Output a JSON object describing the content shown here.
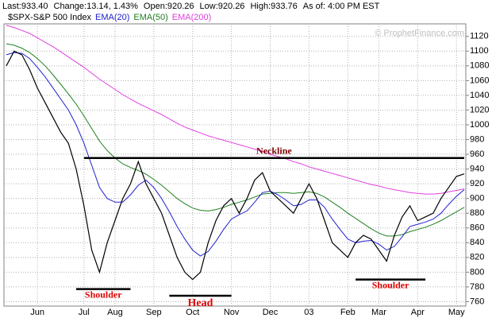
{
  "chart_data": {
    "type": "line",
    "quote": [
      "Last:933.40",
      "Change:13.14, 1.43%",
      "Open:920.26",
      "Low:920.26",
      "High:933.76",
      "As of: 4:00 PM EST"
    ],
    "watermark": "© ProphetFinance.com",
    "categories": [
      null,
      null,
      null,
      null,
      "Jun",
      null,
      null,
      null,
      null,
      null,
      "Jul",
      null,
      null,
      null,
      "Aug",
      null,
      null,
      null,
      null,
      "Sep",
      null,
      null,
      null,
      null,
      "Oct",
      null,
      null,
      null,
      null,
      "Nov",
      null,
      null,
      null,
      null,
      "Dec",
      null,
      null,
      null,
      null,
      "03",
      null,
      null,
      null,
      null,
      "Feb",
      null,
      null,
      null,
      "Mar",
      null,
      null,
      null,
      null,
      "Apr",
      null,
      null,
      null,
      null,
      "May",
      null
    ],
    "series": [
      {
        "name": "$SPX-S&P 500 Index",
        "color": "#000000",
        "width": 1.2,
        "values": [
          1080,
          1100,
          1095,
          1075,
          1050,
          1030,
          1010,
          990,
          975,
          940,
          890,
          830,
          800,
          840,
          870,
          900,
          920,
          950,
          920,
          900,
          880,
          850,
          820,
          800,
          790,
          800,
          840,
          870,
          890,
          900,
          880,
          900,
          925,
          935,
          910,
          900,
          890,
          880,
          900,
          920,
          900,
          870,
          840,
          830,
          820,
          840,
          850,
          845,
          830,
          815,
          850,
          875,
          890,
          870,
          875,
          880,
          900,
          915,
          930,
          933.4
        ]
      },
      {
        "name": "EMA(20)",
        "color": "#2020d0",
        "width": 1,
        "values": [
          1095,
          1098,
          1097,
          1090,
          1078,
          1065,
          1050,
          1035,
          1020,
          1000,
          975,
          945,
          915,
          900,
          895,
          895,
          905,
          918,
          925,
          915,
          900,
          882,
          862,
          845,
          830,
          822,
          828,
          842,
          858,
          872,
          878,
          883,
          895,
          908,
          910,
          905,
          898,
          890,
          892,
          898,
          898,
          888,
          872,
          858,
          845,
          840,
          842,
          843,
          838,
          830,
          835,
          848,
          862,
          865,
          868,
          872,
          880,
          892,
          903,
          912
        ]
      },
      {
        "name": "EMA(50)",
        "color": "#208020",
        "width": 1,
        "values": [
          1110,
          1108,
          1104,
          1098,
          1090,
          1080,
          1068,
          1055,
          1042,
          1028,
          1012,
          995,
          978,
          965,
          955,
          947,
          942,
          938,
          933,
          926,
          918,
          909,
          900,
          893,
          887,
          884,
          883,
          885,
          888,
          892,
          895,
          898,
          902,
          906,
          907,
          908,
          908,
          907,
          908,
          909,
          907,
          902,
          895,
          888,
          880,
          873,
          866,
          859,
          853,
          849,
          849,
          851,
          855,
          858,
          861,
          865,
          870,
          876,
          882,
          888
        ]
      },
      {
        "name": "EMA(200)",
        "color": "#e040e0",
        "width": 1,
        "values": [
          1135,
          1132,
          1128,
          1124,
          1118,
          1112,
          1106,
          1099,
          1092,
          1085,
          1078,
          1070,
          1062,
          1055,
          1048,
          1041,
          1035,
          1029,
          1024,
          1019,
          1014,
          1008,
          1002,
          997,
          993,
          989,
          985,
          982,
          979,
          976,
          973,
          970,
          967,
          964,
          960,
          957,
          954,
          950,
          947,
          943,
          940,
          937,
          934,
          931,
          928,
          925,
          922,
          919,
          917,
          914,
          912,
          910,
          908,
          907,
          906,
          906,
          907,
          909,
          911,
          913
        ]
      }
    ],
    "ylim": [
      754,
      1137
    ],
    "yticks": [
      760,
      780,
      800,
      820,
      840,
      860,
      880,
      900,
      920,
      940,
      960,
      980,
      1000,
      1020,
      1040,
      1060,
      1080,
      1100,
      1120
    ],
    "grid": true,
    "annotations": [
      {
        "text": "Neckline",
        "level": 955,
        "x_range": [
          10,
          59
        ],
        "color": "#800000"
      },
      {
        "text": "Shoulder",
        "level": 777,
        "x_range": [
          9,
          16
        ],
        "color": "#e00000"
      },
      {
        "text": "Head",
        "level": 768,
        "x_range": [
          21,
          29
        ],
        "color": "#e00000"
      },
      {
        "text": "Shoulder",
        "level": 790,
        "x_range": [
          45,
          54
        ],
        "color": "#e00000"
      }
    ]
  }
}
